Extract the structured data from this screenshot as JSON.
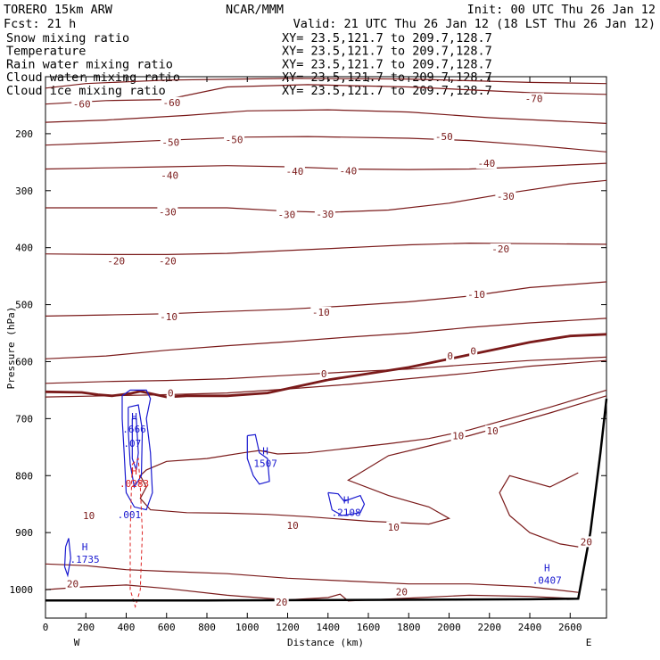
{
  "header": {
    "model": "TORERO  15km ARW",
    "center": "NCAR/MMM",
    "init": "Init: 00 UTC Thu 26 Jan 12",
    "fcst": "Fcst:    21 h",
    "valid": "Valid: 21 UTC Thu 26 Jan 12 (18 LST Thu 26 Jan 12)"
  },
  "fields": [
    {
      "name": "Snow mixing ratio",
      "xy": "XY=  23.5,121.7 to 209.7,128.7",
      "color": "#000000"
    },
    {
      "name": "Temperature",
      "xy": "XY=  23.5,121.7 to 209.7,128.7",
      "color": "#cc0000"
    },
    {
      "name": "Rain water mixing ratio",
      "xy": "XY=  23.5,121.7 to 209.7,128.7",
      "color": "#cc0000"
    },
    {
      "name": "Cloud water mixing ratio",
      "xy": "XY=  23.5,121.7 to 209.7,128.7",
      "color": "#0000cc"
    },
    {
      "name": "Cloud ice mixing ratio",
      "xy": "XY=  23.5,121.7 to 209.7,128.7",
      "color": "#000000"
    }
  ],
  "chart_data": {
    "type": "contour",
    "xlabel": "Distance (km)",
    "ylabel": "Pressure (hPa)",
    "xlim": [
      0,
      2780
    ],
    "ylim": [
      1050,
      100
    ],
    "x_ticks": [
      0,
      200,
      400,
      600,
      800,
      1000,
      1200,
      1400,
      1600,
      1800,
      2000,
      2200,
      2400,
      2600
    ],
    "y_ticks": [
      200,
      300,
      400,
      500,
      600,
      700,
      800,
      900,
      1000
    ],
    "left_end": "W",
    "right_end": "E",
    "colors": {
      "temperature": "#7a1a1a",
      "cloud_water": "#1a1ad0",
      "rain": "#dd2222",
      "terrain": "#000000"
    },
    "temperature_levels": [
      -70,
      -60,
      -50,
      -40,
      -30,
      -20,
      -10,
      0,
      10,
      20
    ],
    "temperature_labels": [
      {
        "v": "-60",
        "x": 180,
        "p": 148
      },
      {
        "v": "-60",
        "x": 625,
        "p": 145
      },
      {
        "v": "-70",
        "x": 2420,
        "p": 138
      },
      {
        "v": "-50",
        "x": 620,
        "p": 215
      },
      {
        "v": "-50",
        "x": 935,
        "p": 210
      },
      {
        "v": "-50",
        "x": 1975,
        "p": 205
      },
      {
        "v": "-40",
        "x": 615,
        "p": 273
      },
      {
        "v": "-40",
        "x": 1235,
        "p": 266
      },
      {
        "v": "-40",
        "x": 1500,
        "p": 265
      },
      {
        "v": "-40",
        "x": 2185,
        "p": 252
      },
      {
        "v": "-30",
        "x": 605,
        "p": 337
      },
      {
        "v": "-30",
        "x": 1195,
        "p": 342
      },
      {
        "v": "-30",
        "x": 1385,
        "p": 341
      },
      {
        "v": "-30",
        "x": 2280,
        "p": 310
      },
      {
        "v": "-20",
        "x": 350,
        "p": 423
      },
      {
        "v": "-20",
        "x": 605,
        "p": 423
      },
      {
        "v": "-20",
        "x": 2255,
        "p": 402
      },
      {
        "v": "-10",
        "x": 610,
        "p": 521
      },
      {
        "v": "-10",
        "x": 1365,
        "p": 513
      },
      {
        "v": "-10",
        "x": 2135,
        "p": 482
      },
      {
        "v": "0",
        "x": 620,
        "p": 655
      },
      {
        "v": "0",
        "x": 1380,
        "p": 621
      },
      {
        "v": "0",
        "x": 2005,
        "p": 590
      },
      {
        "v": "0",
        "x": 2120,
        "p": 581
      },
      {
        "v": "10",
        "x": 2215,
        "p": 721
      },
      {
        "v": "10",
        "x": 2045,
        "p": 730
      },
      {
        "v": "10",
        "x": 215,
        "p": 870
      },
      {
        "v": "10",
        "x": 1225,
        "p": 887
      },
      {
        "v": "10",
        "x": 1725,
        "p": 890
      },
      {
        "v": "20",
        "x": 135,
        "p": 990
      },
      {
        "v": "20",
        "x": 1170,
        "p": 1022
      },
      {
        "v": "20",
        "x": 1765,
        "p": 1004
      },
      {
        "v": "20",
        "x": 2680,
        "p": 916
      }
    ],
    "maxima": [
      {
        "mark": "H",
        "value": ".666",
        "x": 440,
        "p": 720,
        "field": "cloud_water"
      },
      {
        "mark": "",
        "value": ".07",
        "x": 430,
        "p": 745,
        "field": "cloud_water"
      },
      {
        "mark": "H",
        "value": ".0283",
        "x": 440,
        "p": 815,
        "field": "rain"
      },
      {
        "mark": "",
        "value": ".001",
        "x": 415,
        "p": 870,
        "field": "cloud_water"
      },
      {
        "mark": "H",
        "value": "1507",
        "x": 1090,
        "p": 780,
        "field": "cloud_water"
      },
      {
        "mark": "H",
        "value": ".2108",
        "x": 1490,
        "p": 866,
        "field": "cloud_water"
      },
      {
        "mark": "H",
        "value": ".1735",
        "x": 195,
        "p": 948,
        "field": "cloud_water"
      },
      {
        "mark": "H",
        "value": ".0407",
        "x": 2485,
        "p": 985,
        "field": "cloud_water"
      }
    ]
  }
}
